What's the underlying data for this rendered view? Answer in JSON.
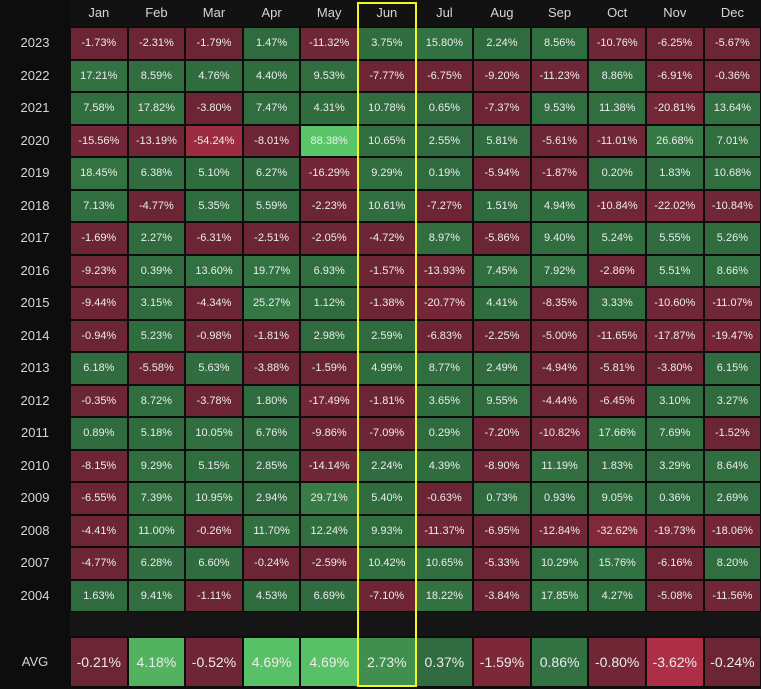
{
  "chart_data": {
    "type": "heatmap",
    "columns": [
      "Jan",
      "Feb",
      "Mar",
      "Apr",
      "May",
      "Jun",
      "Jul",
      "Aug",
      "Sep",
      "Oct",
      "Nov",
      "Dec"
    ],
    "rows": [
      {
        "year": "2023",
        "values": [
          "-1.73%",
          "-2.31%",
          "-1.79%",
          "1.47%",
          "-11.32%",
          "3.75%",
          "15.80%",
          "2.24%",
          "8.56%",
          "-10.76%",
          "-6.25%",
          "-5.67%"
        ]
      },
      {
        "year": "2022",
        "values": [
          "17.21%",
          "8.59%",
          "4.76%",
          "4.40%",
          "9.53%",
          "-7.77%",
          "-6.75%",
          "-9.20%",
          "-11.23%",
          "8.86%",
          "-6.91%",
          "-0.36%"
        ]
      },
      {
        "year": "2021",
        "values": [
          "7.58%",
          "17.82%",
          "-3.80%",
          "7.47%",
          "4.31%",
          "10.78%",
          "0.65%",
          "-7.37%",
          "9.53%",
          "11.38%",
          "-20.81%",
          "13.64%"
        ]
      },
      {
        "year": "2020",
        "values": [
          "-15.56%",
          "-13.19%",
          "-54.24%",
          "-8.01%",
          "88.38%",
          "10.65%",
          "2.55%",
          "5.81%",
          "-5.61%",
          "-11.01%",
          "26.68%",
          "7.01%"
        ]
      },
      {
        "year": "2019",
        "values": [
          "18.45%",
          "6.38%",
          "5.10%",
          "6.27%",
          "-16.29%",
          "9.29%",
          "0.19%",
          "-5.94%",
          "-1.87%",
          "0.20%",
          "1.83%",
          "10.68%"
        ]
      },
      {
        "year": "2018",
        "values": [
          "7.13%",
          "-4.77%",
          "5.35%",
          "5.59%",
          "-2.23%",
          "10.61%",
          "-7.27%",
          "1.51%",
          "4.94%",
          "-10.84%",
          "-22.02%",
          "-10.84%"
        ]
      },
      {
        "year": "2017",
        "values": [
          "-1.69%",
          "2.27%",
          "-6.31%",
          "-2.51%",
          "-2.05%",
          "-4.72%",
          "8.97%",
          "-5.86%",
          "9.40%",
          "5.24%",
          "5.55%",
          "5.26%"
        ]
      },
      {
        "year": "2016",
        "values": [
          "-9.23%",
          "0.39%",
          "13.60%",
          "19.77%",
          "6.93%",
          "-1.57%",
          "-13.93%",
          "7.45%",
          "7.92%",
          "-2.86%",
          "5.51%",
          "8.66%"
        ]
      },
      {
        "year": "2015",
        "values": [
          "-9.44%",
          "3.15%",
          "-4.34%",
          "25.27%",
          "1.12%",
          "-1.38%",
          "-20.77%",
          "4.41%",
          "-8.35%",
          "3.33%",
          "-10.60%",
          "-11.07%"
        ]
      },
      {
        "year": "2014",
        "values": [
          "-0.94%",
          "5.23%",
          "-0.98%",
          "-1.81%",
          "2.98%",
          "2.59%",
          "-6.83%",
          "-2.25%",
          "-5.00%",
          "-11.65%",
          "-17.87%",
          "-19.47%"
        ]
      },
      {
        "year": "2013",
        "values": [
          "6.18%",
          "-5.58%",
          "5.63%",
          "-3.88%",
          "-1.59%",
          "4.99%",
          "8.77%",
          "2.49%",
          "-4.94%",
          "-5.81%",
          "-3.80%",
          "6.15%"
        ]
      },
      {
        "year": "2012",
        "values": [
          "-0.35%",
          "8.72%",
          "-3.78%",
          "1.80%",
          "-17.49%",
          "-1.81%",
          "3.65%",
          "9.55%",
          "-4.44%",
          "-6.45%",
          "3.10%",
          "3.27%"
        ]
      },
      {
        "year": "2011",
        "values": [
          "0.89%",
          "5.18%",
          "10.05%",
          "6.76%",
          "-9.86%",
          "-7.09%",
          "0.29%",
          "-7.20%",
          "-10.82%",
          "17.66%",
          "7.69%",
          "-1.52%"
        ]
      },
      {
        "year": "2010",
        "values": [
          "-8.15%",
          "9.29%",
          "5.15%",
          "2.85%",
          "-14.14%",
          "2.24%",
          "4.39%",
          "-8.90%",
          "11.19%",
          "1.83%",
          "3.29%",
          "8.64%"
        ]
      },
      {
        "year": "2009",
        "values": [
          "-6.55%",
          "7.39%",
          "10.95%",
          "2.94%",
          "29.71%",
          "5.40%",
          "-0.63%",
          "0.73%",
          "0.93%",
          "9.05%",
          "0.36%",
          "2.69%"
        ]
      },
      {
        "year": "2008",
        "values": [
          "-4.41%",
          "11.00%",
          "-0.26%",
          "11.70%",
          "12.24%",
          "9.93%",
          "-11.37%",
          "-6.95%",
          "-12.84%",
          "-32.62%",
          "-19.73%",
          "-18.06%"
        ]
      },
      {
        "year": "2007",
        "values": [
          "-4.77%",
          "6.28%",
          "6.60%",
          "-0.24%",
          "-2.59%",
          "10.42%",
          "10.65%",
          "-5.33%",
          "10.29%",
          "15.76%",
          "-6.16%",
          "8.20%"
        ]
      },
      {
        "year": "2004",
        "values": [
          "1.63%",
          "9.41%",
          "-1.11%",
          "4.53%",
          "6.69%",
          "-7.10%",
          "18.22%",
          "-3.84%",
          "17.85%",
          "4.27%",
          "-5.08%",
          "-11.56%"
        ]
      }
    ],
    "average": {
      "label": "AVG",
      "values": [
        "-0.21%",
        "4.18%",
        "-0.52%",
        "4.69%",
        "4.69%",
        "2.73%",
        "0.37%",
        "-1.59%",
        "0.86%",
        "-0.80%",
        "-3.62%",
        "-0.24%"
      ]
    },
    "highlighted_column": "Jun",
    "colors": {
      "positive": "#2f6b3e",
      "negative": "#6b2535",
      "strong_positive": "#5cc96a",
      "strong_negative": "#d9364f",
      "highlight": "#f3f521",
      "background": "#0d0d0d"
    }
  }
}
